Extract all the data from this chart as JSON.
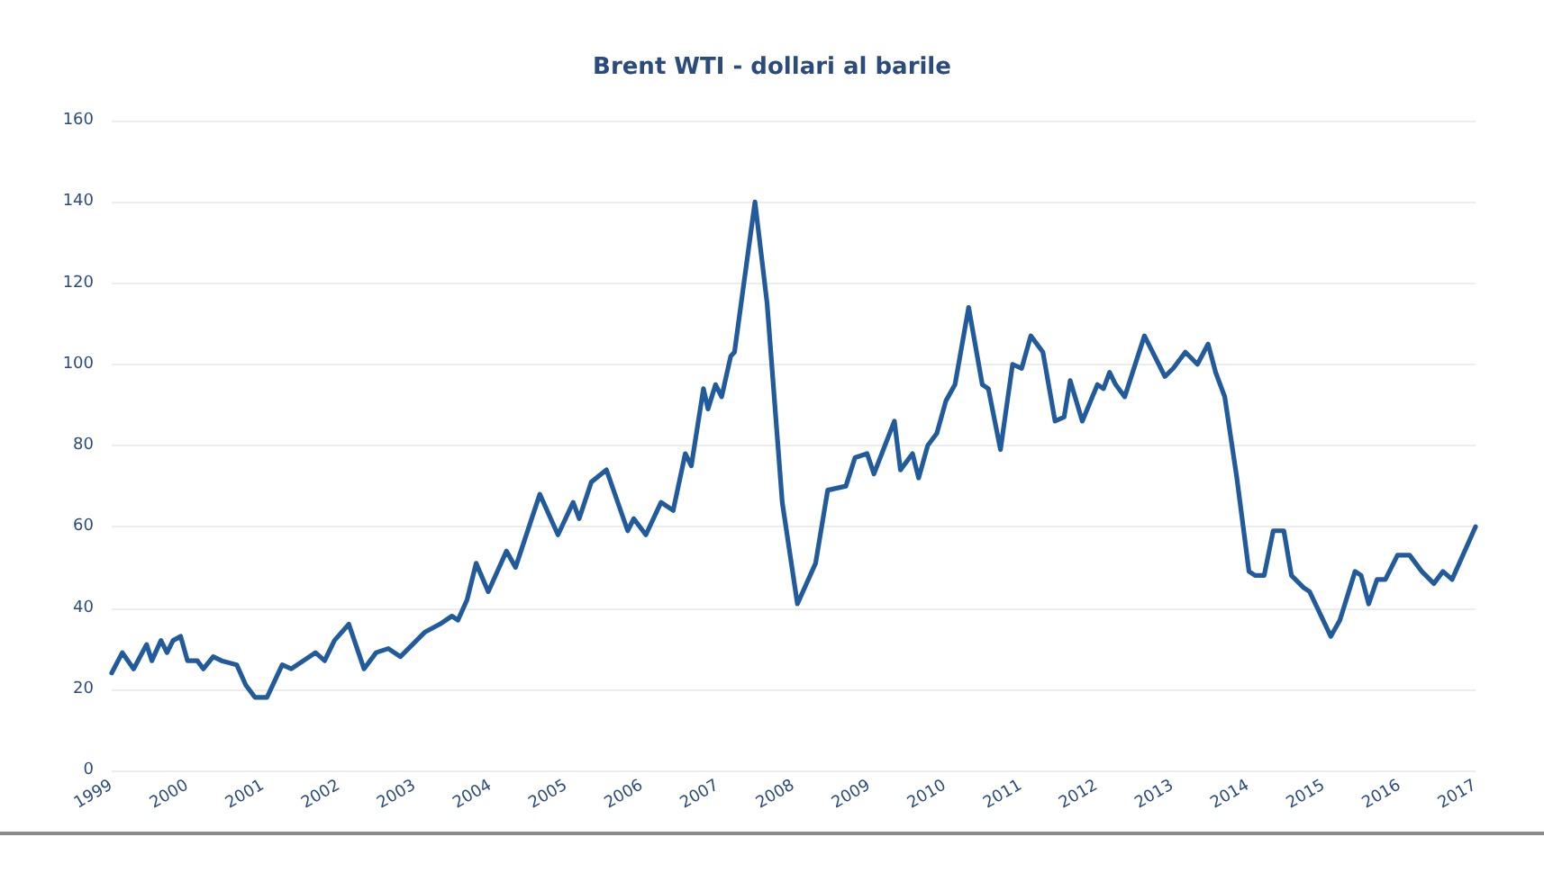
{
  "chart_data": {
    "type": "line",
    "title": "Brent WTI - dollari al barile",
    "x": [
      1999.0,
      1999.14,
      1999.29,
      1999.46,
      1999.53,
      1999.65,
      1999.73,
      1999.81,
      1999.91,
      2000.0,
      2000.13,
      2000.21,
      2000.34,
      2000.45,
      2000.65,
      2000.77,
      2000.89,
      2001.05,
      2001.25,
      2001.37,
      2001.53,
      2001.69,
      2001.81,
      2001.94,
      2002.13,
      2002.33,
      2002.49,
      2002.65,
      2002.81,
      2003.13,
      2003.33,
      2003.49,
      2003.57,
      2003.69,
      2003.81,
      2003.97,
      2004.21,
      2004.33,
      2004.65,
      2004.89,
      2005.09,
      2005.17,
      2005.33,
      2005.53,
      2005.81,
      2005.89,
      2006.05,
      2006.25,
      2006.41,
      2006.57,
      2006.65,
      2006.81,
      2006.87,
      2006.97,
      2007.05,
      2007.17,
      2007.22,
      2007.49,
      2007.65,
      2007.85,
      2008.05,
      2008.29,
      2008.45,
      2008.69,
      2008.81,
      2008.97,
      2009.06,
      2009.33,
      2009.41,
      2009.57,
      2009.65,
      2009.77,
      2009.89,
      2010.01,
      2010.13,
      2010.31,
      2010.49,
      2010.57,
      2010.73,
      2010.89,
      2011.01,
      2011.13,
      2011.29,
      2011.45,
      2011.57,
      2011.65,
      2011.81,
      2012.01,
      2012.09,
      2012.17,
      2012.25,
      2012.37,
      2012.63,
      2012.9,
      2013.01,
      2013.17,
      2013.33,
      2013.47,
      2013.57,
      2013.69,
      2013.85,
      2014.01,
      2014.09,
      2014.21,
      2014.33,
      2014.47,
      2014.57,
      2014.73,
      2014.81,
      2015.09,
      2015.21,
      2015.41,
      2015.49,
      2015.59,
      2015.7,
      2015.81,
      2015.97,
      2016.13,
      2016.29,
      2016.45,
      2016.57,
      2016.69,
      2017.0
    ],
    "values": [
      24,
      29,
      25,
      31,
      27,
      32,
      29,
      32,
      33,
      27,
      27,
      25,
      28,
      27,
      26,
      21,
      18,
      18,
      26,
      25,
      27,
      29,
      27,
      32,
      36,
      25,
      29,
      30,
      28,
      34,
      36,
      38,
      37,
      42,
      51,
      44,
      54,
      50,
      68,
      58,
      66,
      62,
      71,
      74,
      59,
      62,
      58,
      66,
      64,
      78,
      75,
      94,
      89,
      95,
      92,
      102,
      103,
      140,
      115,
      66,
      41,
      51,
      69,
      70,
      77,
      78,
      73,
      86,
      74,
      78,
      72,
      80,
      83,
      91,
      95,
      114,
      95,
      94,
      79,
      100,
      99,
      107,
      103,
      86,
      87,
      96,
      86,
      95,
      94,
      98,
      95,
      92,
      107,
      97,
      99,
      103,
      100,
      105,
      98,
      92,
      72,
      49,
      48,
      48,
      59,
      59,
      48,
      45,
      44,
      33,
      37,
      49,
      48,
      41,
      47,
      47,
      53,
      53,
      49,
      46,
      49,
      47,
      60
    ],
    "color": "#225b9b",
    "xlim": [
      1999,
      2017
    ],
    "xticks": [
      1999,
      2000,
      2001,
      2002,
      2003,
      2004,
      2005,
      2006,
      2007,
      2008,
      2009,
      2010,
      2011,
      2012,
      2013,
      2014,
      2015,
      2016,
      2017
    ],
    "ylim": [
      0,
      160
    ],
    "yticks": [
      0,
      20,
      40,
      60,
      80,
      100,
      120,
      140,
      160
    ],
    "grid": "y"
  }
}
